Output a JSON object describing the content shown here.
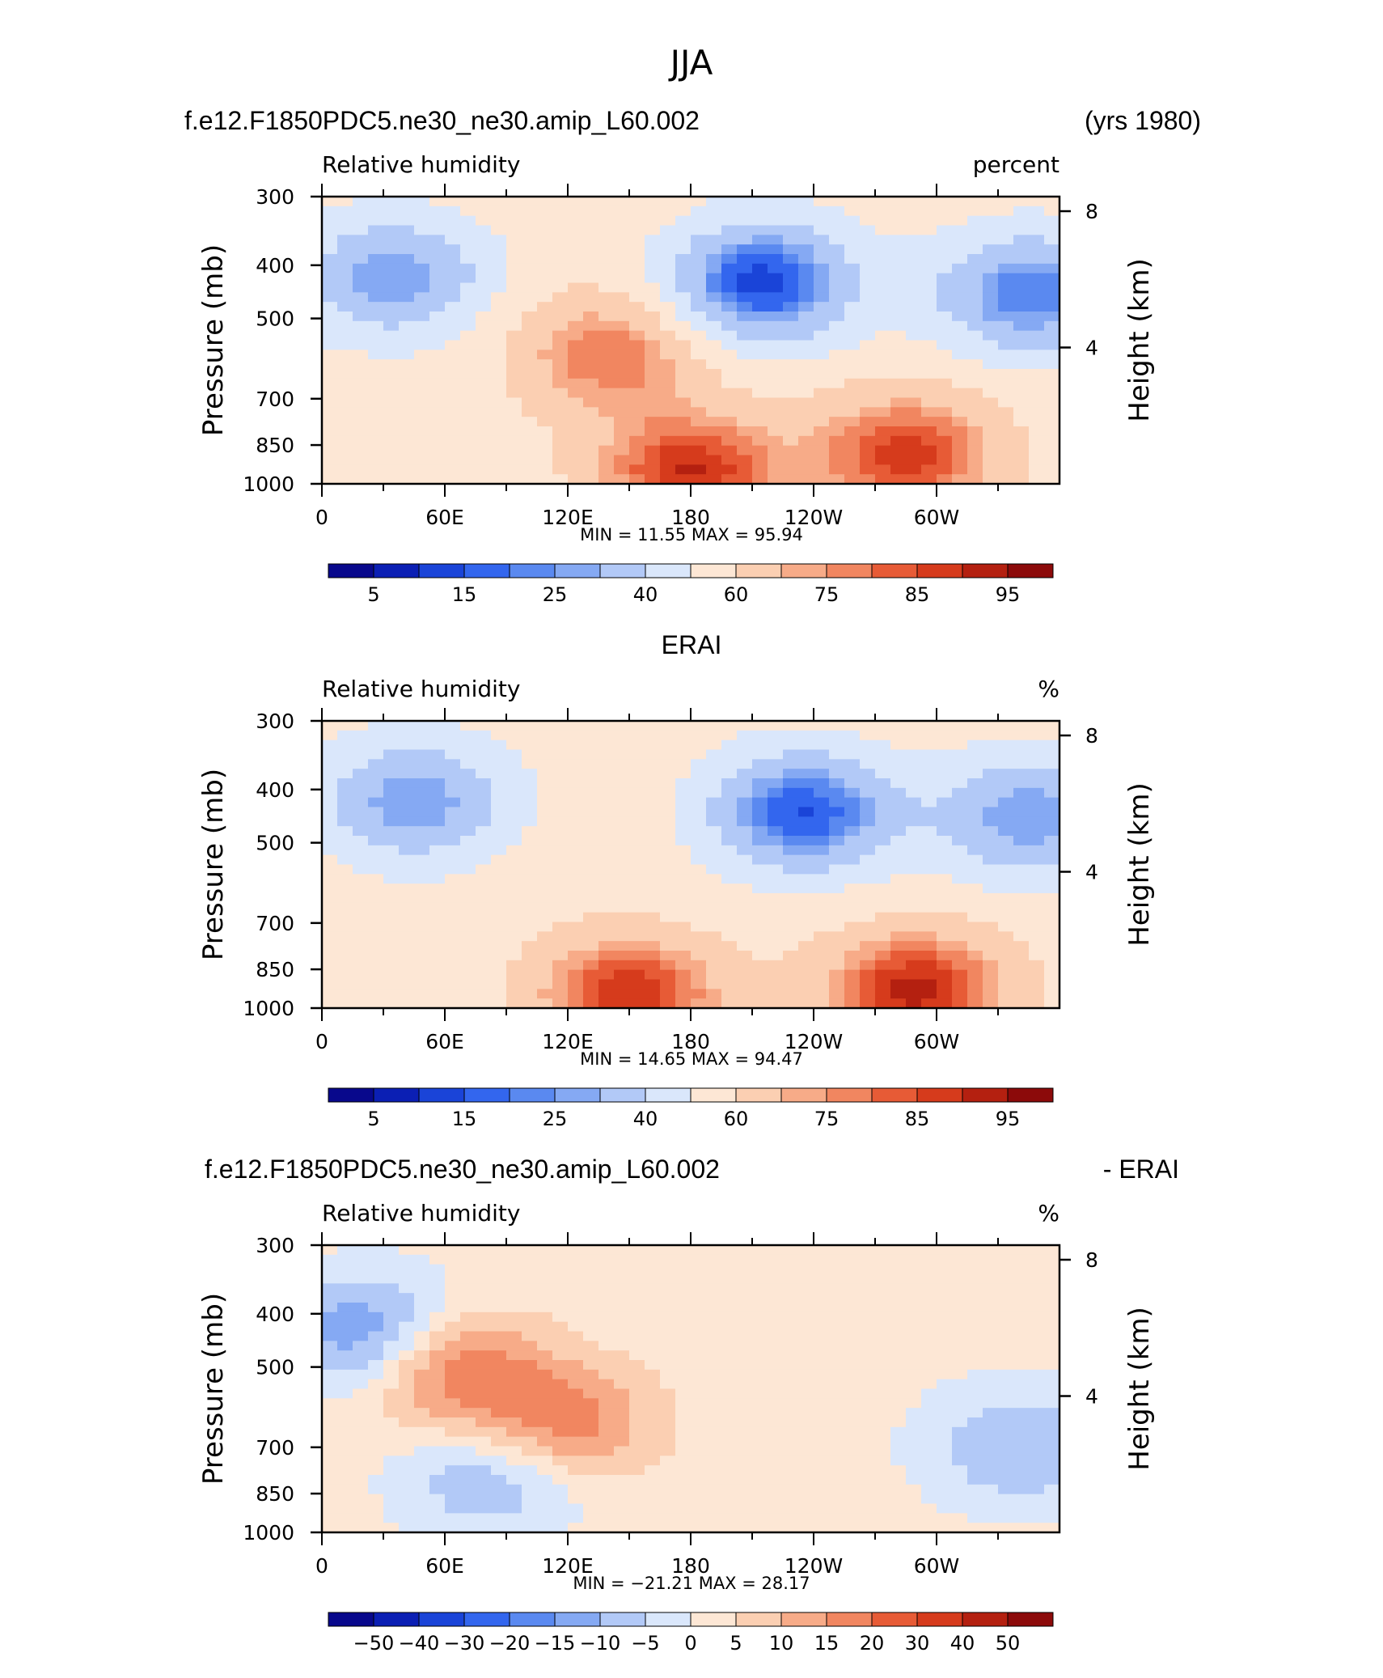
{
  "figure": {
    "title": "JJA"
  },
  "colors": {
    "levels_abs": [
      "#08088c",
      "#0b1fb4",
      "#1a44d8",
      "#3366ee",
      "#5a89f0",
      "#85a9f3",
      "#b2c9f7",
      "#dae7fb",
      "#fde7d5",
      "#fbcfb2",
      "#f7ab88",
      "#f18660",
      "#e75b36",
      "#d63b1c",
      "#b42010",
      "#8c0a0a"
    ],
    "levels_diff": [
      "#08088c",
      "#0b1fb4",
      "#1a44d8",
      "#3366ee",
      "#5a89f0",
      "#85a9f3",
      "#b2c9f7",
      "#dae7fb",
      "#fde7d5",
      "#fbcfb2",
      "#f7ab88",
      "#f18660",
      "#e75b36",
      "#d63b1c",
      "#b42010",
      "#8c0a0a"
    ]
  },
  "panels": [
    {
      "title_left": "f.e12.F1850PDC5.ne30_ne30.amip_L60.002",
      "title_right": "(yrs 1980)",
      "title_center": "",
      "var_label": "Relative humidity",
      "units": "percent",
      "minmax_text": "MIN =   11.55   MAX =   95.94",
      "colorbar_labels": [
        "5",
        "15",
        "25",
        "40",
        "60",
        "75",
        "85",
        "95"
      ]
    },
    {
      "title_left": "",
      "title_right": "",
      "title_center": "ERAI",
      "var_label": "Relative humidity",
      "units": "%",
      "minmax_text": "MIN =   14.65   MAX =   94.47",
      "colorbar_labels": [
        "5",
        "15",
        "25",
        "40",
        "60",
        "75",
        "85",
        "95"
      ]
    },
    {
      "title_left": "f.e12.F1850PDC5.ne30_ne30.amip_L60.002",
      "title_right": "- ERAI",
      "title_center": "",
      "var_label": "Relative humidity",
      "units": "%",
      "minmax_text": "MIN = −21.21   MAX =   28.17",
      "colorbar_labels": [
        "−50",
        "−40",
        "−30",
        "−20",
        "−15",
        "−10",
        "−5",
        "0",
        "5",
        "10",
        "15",
        "20",
        "30",
        "40",
        "50"
      ]
    }
  ],
  "axes": {
    "y_left_label": "Pressure (mb)",
    "y_right_label": "Height (km)",
    "pressure_ticks": [
      "300",
      "400",
      "500",
      "700",
      "850",
      "1000"
    ],
    "pressure_values": [
      300,
      400,
      500,
      700,
      850,
      1000
    ],
    "height_ticks": [
      "8",
      "4"
    ],
    "height_values": [
      8,
      4
    ],
    "lon_ticks": [
      "0",
      "60E",
      "120E",
      "180",
      "120W",
      "60W"
    ],
    "lon_values": [
      0,
      60,
      120,
      180,
      240,
      300
    ]
  },
  "chart_data": [
    {
      "type": "heatmap",
      "title": "f.e12.F1850PDC5.ne30_ne30.amip_L60.002",
      "subtitle": "(yrs 1980)",
      "xlabel": "",
      "ylabel": "Pressure (mb)",
      "y2label": "Height (km)",
      "xlim": [
        0,
        360
      ],
      "ylim": [
        1000,
        300
      ],
      "value_min": 11.55,
      "value_max": 95.94,
      "levels": [
        5,
        10,
        15,
        20,
        25,
        30,
        40,
        50,
        60,
        70,
        75,
        80,
        85,
        90,
        95
      ],
      "features": [
        {
          "lon": 215,
          "p": 430,
          "value": 12
        },
        {
          "lon": 345,
          "p": 450,
          "value": 20
        },
        {
          "lon": 35,
          "p": 420,
          "value": 25
        },
        {
          "lon": 140,
          "p": 580,
          "value": 80
        },
        {
          "lon": 180,
          "p": 950,
          "value": 90
        },
        {
          "lon": 285,
          "p": 880,
          "value": 88
        }
      ]
    },
    {
      "type": "heatmap",
      "title": "ERAI",
      "xlabel": "",
      "ylabel": "Pressure (mb)",
      "y2label": "Height (km)",
      "xlim": [
        0,
        360
      ],
      "ylim": [
        1000,
        300
      ],
      "value_min": 14.65,
      "value_max": 94.47,
      "levels": [
        5,
        10,
        15,
        20,
        25,
        30,
        40,
        50,
        60,
        70,
        75,
        80,
        85,
        90,
        95
      ],
      "features": [
        {
          "lon": 235,
          "p": 440,
          "value": 15
        },
        {
          "lon": 345,
          "p": 450,
          "value": 25
        },
        {
          "lon": 45,
          "p": 420,
          "value": 25
        },
        {
          "lon": 150,
          "p": 950,
          "value": 90
        },
        {
          "lon": 290,
          "p": 930,
          "value": 92
        }
      ]
    },
    {
      "type": "heatmap",
      "title": "f.e12.F1850PDC5.ne30_ne30.amip_L60.002",
      "subtitle": "- ERAI",
      "xlabel": "",
      "ylabel": "Pressure (mb)",
      "y2label": "Height (km)",
      "xlim": [
        0,
        360
      ],
      "ylim": [
        1000,
        300
      ],
      "value_min": -21.21,
      "value_max": 28.17,
      "levels": [
        -50,
        -40,
        -30,
        -20,
        -15,
        -10,
        -5,
        0,
        5,
        10,
        15,
        20,
        30,
        40,
        50
      ],
      "features": [
        {
          "lon": 60,
          "p": 500,
          "value": 22
        },
        {
          "lon": 115,
          "p": 640,
          "value": 20
        },
        {
          "lon": 25,
          "p": 440,
          "value": -18
        },
        {
          "lon": 85,
          "p": 780,
          "value": -12
        },
        {
          "lon": 340,
          "p": 700,
          "value": -10
        }
      ]
    }
  ]
}
